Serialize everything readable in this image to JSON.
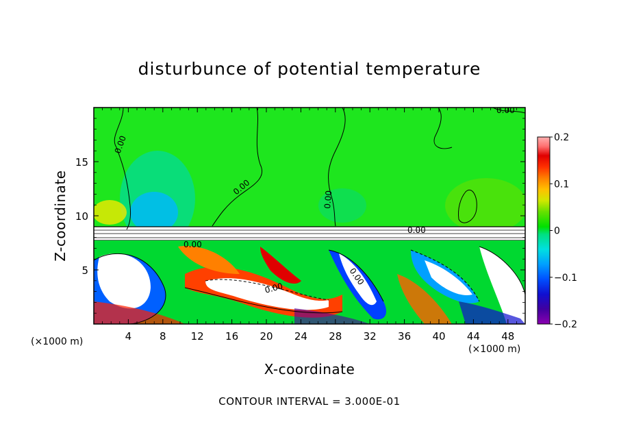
{
  "chart_data": {
    "type": "heatmap",
    "title": "disturbunce of potential temperature",
    "xlabel": "X-coordinate",
    "ylabel": "Z-coordinate",
    "x_unit": "(×1000 m)",
    "z_unit": "(×1000 m)",
    "xlim": [
      0,
      50
    ],
    "ylim": [
      0,
      20
    ],
    "x_ticks": [
      4,
      8,
      12,
      16,
      20,
      24,
      28,
      32,
      36,
      40,
      44,
      48
    ],
    "y_ticks": [
      5,
      10,
      15
    ],
    "colorbar": {
      "range": [
        -0.2,
        0.2
      ],
      "tick_values": [
        0.2,
        0.1,
        0,
        -0.1,
        -0.2
      ],
      "tick_labels": [
        "0.2",
        "0.1",
        "0",
        "−0.1",
        "−0.2"
      ],
      "colors": [
        "#8b00b0",
        "#5000a0",
        "#1010c8",
        "#0040ff",
        "#0080ff",
        "#00b0ff",
        "#00e0e0",
        "#00e8a0",
        "#00e000",
        "#33e000",
        "#a0e000",
        "#e8e800",
        "#ffc000",
        "#ff9000",
        "#ff6000",
        "#ff2000",
        "#e00000",
        "#ff8080",
        "#ffb0b0"
      ]
    },
    "contour_labels": [
      "0.00"
    ],
    "contour_interval_text": "CONTOUR INTERVAL = 3.000E-01"
  }
}
